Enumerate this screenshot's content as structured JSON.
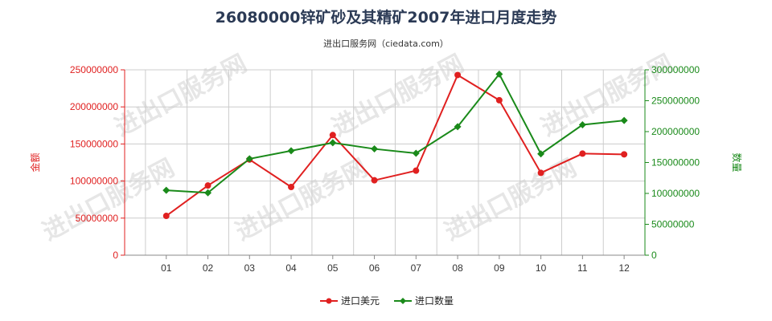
{
  "chart_data": {
    "type": "line",
    "title": "26080000锌矿砂及其精矿2007年进口月度走势",
    "subtitle": "进出口服务网（ciedata.com）",
    "watermark": "进出口服务网",
    "categories": [
      "01",
      "02",
      "03",
      "04",
      "05",
      "06",
      "07",
      "08",
      "09",
      "10",
      "11",
      "12"
    ],
    "y_left": {
      "label": "金额",
      "min": 0,
      "max": 250000000,
      "ticks": [
        "0",
        "50000000",
        "100000000",
        "150000000",
        "200000000",
        "250000000"
      ]
    },
    "y_right": {
      "label": "数量",
      "min": 0,
      "max": 300000000,
      "ticks": [
        "0",
        "50000000",
        "100000000",
        "150000000",
        "200000000",
        "250000000",
        "300000000"
      ]
    },
    "grid": true,
    "legend_position": "bottom-center",
    "series": [
      {
        "name": "进口美元",
        "axis": "left",
        "color": "#e02020",
        "marker": "circle",
        "values": [
          53000000,
          94000000,
          129000000,
          92000000,
          162000000,
          101000000,
          114000000,
          243000000,
          209000000,
          111000000,
          137000000,
          136000000
        ]
      },
      {
        "name": "进口数量",
        "axis": "right",
        "color": "#1a8a1a",
        "marker": "diamond",
        "values": [
          105000000,
          101000000,
          156000000,
          169000000,
          182000000,
          172000000,
          165000000,
          208000000,
          293000000,
          164000000,
          211000000,
          218000000
        ]
      }
    ]
  }
}
